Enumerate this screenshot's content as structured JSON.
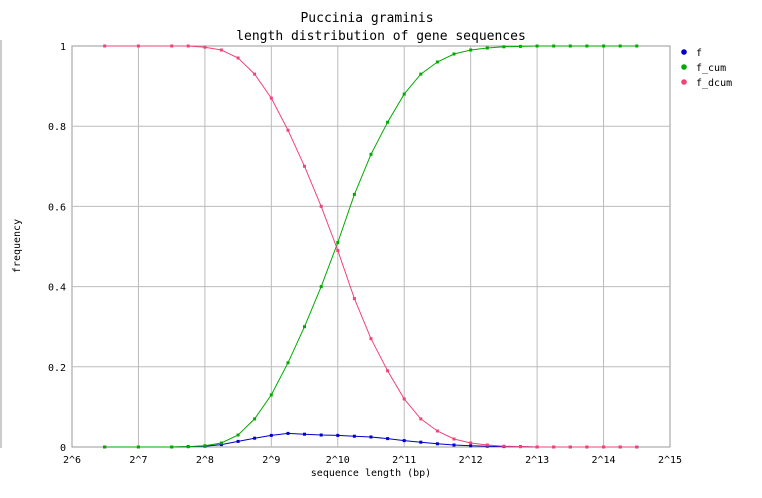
{
  "chart_data": {
    "type": "line",
    "title": [
      "Puccinia graminis",
      "length distribution of gene sequences"
    ],
    "xlabel": "sequence length (bp)",
    "ylabel": "frequency",
    "x_scale": "log2",
    "xlim": [
      64,
      32768
    ],
    "ylim": [
      0,
      1
    ],
    "x_ticks": [
      "2^6",
      "2^7",
      "2^8",
      "2^9",
      "2^10",
      "2^11",
      "2^12",
      "2^13",
      "2^14",
      "2^15"
    ],
    "y_ticks": [
      "0",
      "0.2",
      "0.4",
      "0.6",
      "0.8",
      "1"
    ],
    "grid": true,
    "legend_position": "top-right",
    "series": [
      {
        "name": "f",
        "color": "#0000cc",
        "x": [
          90,
          128,
          181,
          215,
          256,
          304,
          362,
          430,
          512,
          609,
          724,
          861,
          1024,
          1218,
          1448,
          1722,
          2048,
          2435,
          2896,
          3444,
          4096,
          4871,
          5793,
          6889,
          8192,
          9742,
          11585,
          13777,
          16384,
          19484,
          23170
        ],
        "y": [
          0,
          0,
          0,
          0.001,
          0.002,
          0.006,
          0.014,
          0.022,
          0.029,
          0.034,
          0.032,
          0.03,
          0.029,
          0.027,
          0.025,
          0.021,
          0.016,
          0.012,
          0.008,
          0.005,
          0.003,
          0.002,
          0.001,
          0.001,
          0,
          0,
          0,
          0,
          0,
          0,
          0
        ]
      },
      {
        "name": "f_cum",
        "color": "#00aa00",
        "x": [
          90,
          128,
          181,
          215,
          256,
          304,
          362,
          430,
          512,
          609,
          724,
          861,
          1024,
          1218,
          1448,
          1722,
          2048,
          2435,
          2896,
          3444,
          4096,
          4871,
          5793,
          6889,
          8192,
          9742,
          11585,
          13777,
          16384,
          19484,
          23170
        ],
        "y": [
          0,
          0,
          0,
          0.001,
          0.003,
          0.01,
          0.03,
          0.07,
          0.13,
          0.21,
          0.3,
          0.4,
          0.51,
          0.63,
          0.73,
          0.81,
          0.88,
          0.93,
          0.96,
          0.98,
          0.99,
          0.995,
          0.998,
          0.999,
          1,
          1,
          1,
          1,
          1,
          1,
          1
        ]
      },
      {
        "name": "f_dcum",
        "color": "#ee4477",
        "x": [
          90,
          128,
          181,
          215,
          256,
          304,
          362,
          430,
          512,
          609,
          724,
          861,
          1024,
          1218,
          1448,
          1722,
          2048,
          2435,
          2896,
          3444,
          4096,
          4871,
          5793,
          6889,
          8192,
          9742,
          11585,
          13777,
          16384,
          19484,
          23170
        ],
        "y": [
          1,
          1,
          1,
          1,
          0.997,
          0.99,
          0.97,
          0.93,
          0.87,
          0.79,
          0.7,
          0.6,
          0.49,
          0.37,
          0.27,
          0.19,
          0.12,
          0.07,
          0.04,
          0.02,
          0.01,
          0.005,
          0.002,
          0.001,
          0,
          0,
          0,
          0,
          0,
          0,
          0
        ]
      }
    ]
  }
}
